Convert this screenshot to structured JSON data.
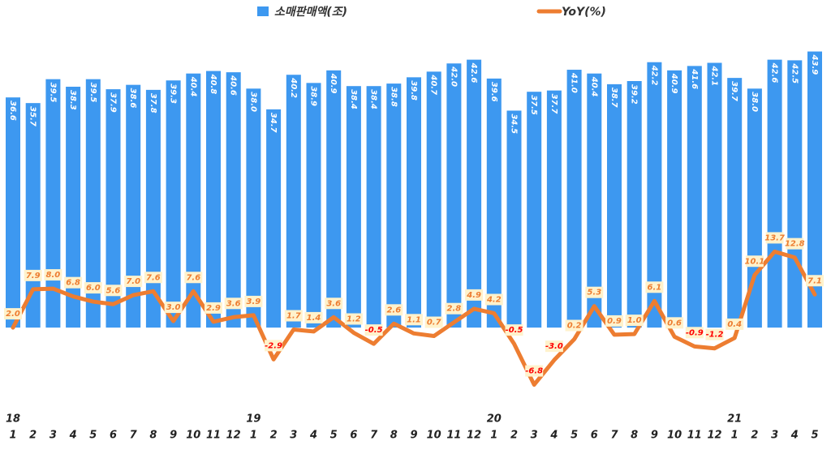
{
  "chart_data": {
    "type": "bar-line",
    "categories": [
      "1",
      "2",
      "3",
      "4",
      "5",
      "6",
      "7",
      "8",
      "9",
      "10",
      "11",
      "12",
      "1",
      "2",
      "3",
      "4",
      "5",
      "6",
      "7",
      "8",
      "9",
      "10",
      "11",
      "12",
      "1",
      "2",
      "3",
      "4",
      "5",
      "6",
      "7",
      "8",
      "9",
      "10",
      "11",
      "12",
      "1",
      "2",
      "3",
      "4",
      "5"
    ],
    "year_labels": [
      "18",
      null,
      null,
      null,
      null,
      null,
      null,
      null,
      null,
      null,
      null,
      null,
      "19",
      null,
      null,
      null,
      null,
      null,
      null,
      null,
      null,
      null,
      null,
      null,
      "20",
      null,
      null,
      null,
      null,
      null,
      null,
      null,
      null,
      null,
      null,
      null,
      "21",
      null,
      null,
      null,
      null
    ],
    "series": [
      {
        "name": "소매판매액(조)",
        "type": "bar",
        "color": "#3d98f0",
        "values": [
          36.6,
          35.7,
          39.5,
          38.3,
          39.5,
          37.9,
          38.6,
          37.8,
          39.3,
          40.4,
          40.8,
          40.6,
          38.0,
          34.7,
          40.2,
          38.9,
          40.9,
          38.4,
          38.4,
          38.8,
          39.8,
          40.7,
          42.0,
          42.6,
          39.6,
          34.5,
          37.5,
          37.7,
          41.0,
          40.4,
          38.7,
          39.2,
          42.2,
          40.9,
          41.6,
          42.1,
          39.7,
          38.0,
          42.6,
          42.5,
          43.9
        ],
        "value_labels": [
          "36.6",
          "35.7",
          "39.5",
          "38.3",
          "39.5",
          "37.9",
          "38.6",
          "37.8",
          "39.3",
          "40.4",
          "40.8",
          "40.6",
          "38.0",
          "34.7",
          "40.2",
          "38.9",
          "40.9",
          "38.4",
          "38.4",
          "38.8",
          "39.8",
          "40.7",
          "42.0",
          "42.6",
          "39.6",
          "34.5",
          "37.5",
          "37.7",
          "41.0",
          "40.4",
          "38.7",
          "39.2",
          "42.2",
          "40.9",
          "41.6",
          "42.1",
          "39.7",
          "38.0",
          "42.6",
          "42.5",
          "43.9"
        ]
      },
      {
        "name": "YoY(%)",
        "type": "line",
        "axis": "y2",
        "color": "#ed7d31",
        "negative_label_color": "#ff0000",
        "values": [
          2.0,
          7.9,
          8.0,
          6.8,
          6.0,
          5.6,
          7.0,
          7.6,
          3.0,
          7.6,
          2.9,
          3.6,
          3.9,
          -2.9,
          1.7,
          1.4,
          3.6,
          1.2,
          -0.5,
          2.6,
          1.1,
          0.7,
          2.8,
          4.9,
          4.2,
          -0.5,
          -6.8,
          -3.0,
          0.2,
          5.3,
          0.9,
          1.0,
          6.1,
          0.6,
          -0.9,
          -1.2,
          0.4,
          10.1,
          13.7,
          12.8,
          7.1
        ],
        "value_labels": [
          "2.0",
          "7.9",
          "8.0",
          "6.8",
          "6.0",
          "5.6",
          "7.0",
          "7.6",
          "3.0",
          "7.6",
          "2.9",
          "3.6",
          "3.9",
          "-2.9",
          "1.7",
          "1.4",
          "3.6",
          "1.2",
          "-0.5",
          "2.6",
          "1.1",
          "0.7",
          "2.8",
          "4.9",
          "4.2",
          "-0.5",
          "-6.8",
          "-3.0",
          "0.2",
          "5.3",
          "0.9",
          "1.0",
          "6.1",
          "0.6",
          "-0.9",
          "-1.2",
          "0.4",
          "10.1",
          "13.7",
          "12.8",
          "7.1"
        ]
      }
    ],
    "ylim": [
      -13,
      45
    ],
    "y2lim": [
      -10.6,
      45.6
    ]
  }
}
